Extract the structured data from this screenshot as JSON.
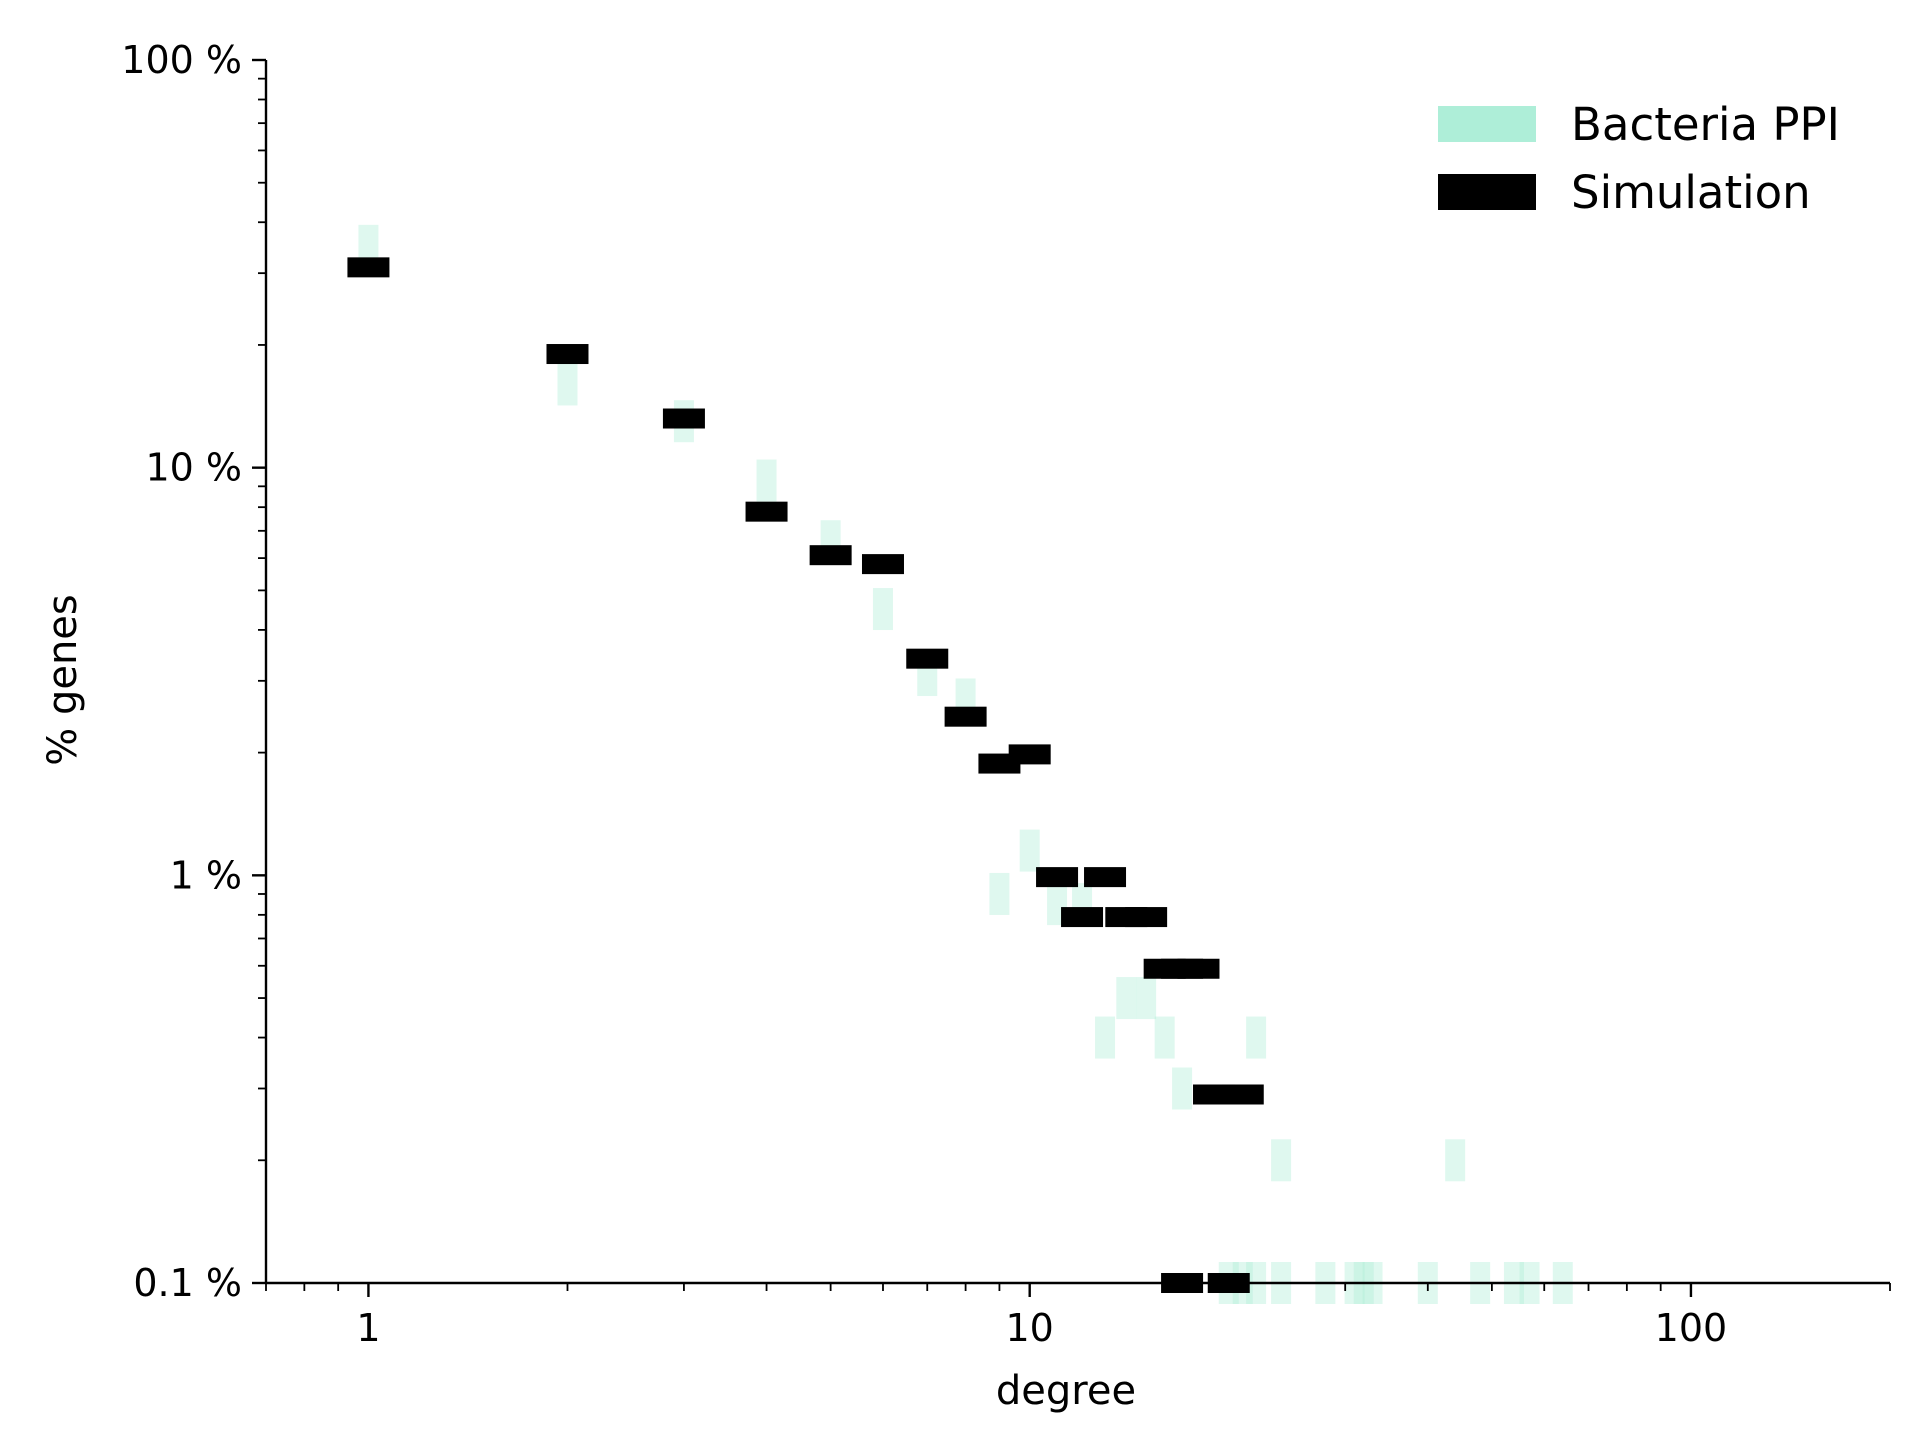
{
  "chart_data": {
    "type": "scatter",
    "title": "",
    "xlabel": "degree",
    "ylabel": "% genes",
    "xscale": "log",
    "yscale": "log",
    "xlim": [
      0.7,
      200
    ],
    "ylim": [
      0.1,
      100
    ],
    "x_ticks": [
      {
        "value": 1,
        "label": "1"
      },
      {
        "value": 10,
        "label": "10"
      },
      {
        "value": 100,
        "label": "100"
      }
    ],
    "y_ticks": [
      {
        "value": 0.1,
        "label": "0.1 %"
      },
      {
        "value": 1,
        "label": "1 %"
      },
      {
        "value": 10,
        "label": "10 %"
      },
      {
        "value": 100,
        "label": "100 %"
      }
    ],
    "grid": false,
    "legend_position": "top-right",
    "series": [
      {
        "name": "Bacteria PPI",
        "color": "#aeeed8",
        "opacity": 0.4,
        "marker": "vertical-bar",
        "points": [
          {
            "x": 1,
            "y": 35
          },
          {
            "x": 2,
            "y": 16
          },
          {
            "x": 3,
            "y": 13
          },
          {
            "x": 4,
            "y": 9.3
          },
          {
            "x": 5,
            "y": 6.6
          },
          {
            "x": 6,
            "y": 4.5
          },
          {
            "x": 7,
            "y": 3.1
          },
          {
            "x": 8,
            "y": 2.7
          },
          {
            "x": 9,
            "y": 0.9
          },
          {
            "x": 10,
            "y": 1.15
          },
          {
            "x": 11,
            "y": 0.85
          },
          {
            "x": 12,
            "y": 0.85
          },
          {
            "x": 13,
            "y": 0.4
          },
          {
            "x": 14,
            "y": 0.5
          },
          {
            "x": 15,
            "y": 0.5
          },
          {
            "x": 16,
            "y": 0.4
          },
          {
            "x": 17,
            "y": 0.3
          },
          {
            "x": 22,
            "y": 0.4
          },
          {
            "x": 24,
            "y": 0.2
          },
          {
            "x": 44,
            "y": 0.2
          },
          {
            "x": 20,
            "y": 0.1
          },
          {
            "x": 21,
            "y": 0.1
          },
          {
            "x": 22,
            "y": 0.1
          },
          {
            "x": 24,
            "y": 0.1
          },
          {
            "x": 28,
            "y": 0.1
          },
          {
            "x": 31,
            "y": 0.1
          },
          {
            "x": 32,
            "y": 0.1
          },
          {
            "x": 33,
            "y": 0.1
          },
          {
            "x": 40,
            "y": 0.1
          },
          {
            "x": 48,
            "y": 0.1
          },
          {
            "x": 54,
            "y": 0.1
          },
          {
            "x": 57,
            "y": 0.1
          },
          {
            "x": 64,
            "y": 0.1
          }
        ]
      },
      {
        "name": "Simulation",
        "color": "#000000",
        "marker": "horizontal-bar",
        "points": [
          {
            "x": 1,
            "y": 31
          },
          {
            "x": 2,
            "y": 19
          },
          {
            "x": 3,
            "y": 13.2
          },
          {
            "x": 4,
            "y": 7.8
          },
          {
            "x": 5,
            "y": 6.1
          },
          {
            "x": 6,
            "y": 5.8
          },
          {
            "x": 7,
            "y": 3.4
          },
          {
            "x": 8,
            "y": 2.45
          },
          {
            "x": 9,
            "y": 1.88
          },
          {
            "x": 10,
            "y": 1.98
          },
          {
            "x": 11,
            "y": 0.99
          },
          {
            "x": 12,
            "y": 0.79
          },
          {
            "x": 13,
            "y": 0.99
          },
          {
            "x": 14,
            "y": 0.79
          },
          {
            "x": 15,
            "y": 0.79
          },
          {
            "x": 16,
            "y": 0.59
          },
          {
            "x": 17,
            "y": 0.59
          },
          {
            "x": 18,
            "y": 0.59
          },
          {
            "x": 19,
            "y": 0.29
          },
          {
            "x": 20,
            "y": 0.29
          },
          {
            "x": 21,
            "y": 0.29
          },
          {
            "x": 17,
            "y": 0.1
          },
          {
            "x": 20,
            "y": 0.1
          }
        ]
      }
    ]
  }
}
